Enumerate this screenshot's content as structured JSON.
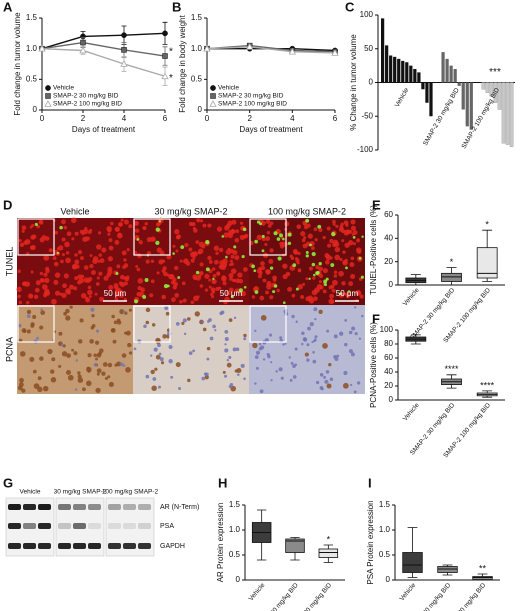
{
  "chart_data": [
    {
      "type": "line",
      "panel": "A",
      "x": [
        0,
        2,
        4,
        6
      ],
      "xlim": [
        0,
        6
      ],
      "xticks": [
        0,
        2,
        4,
        6
      ],
      "ylim": [
        0,
        1.5
      ],
      "yticks": [
        0,
        0.5,
        {
          "value": 1,
          "label": "1.0"
        },
        {
          "value": 1.5,
          "label": "1.5"
        }
      ],
      "xlabel": "Days of treatment",
      "ylabel": "Fold change in tumor volume",
      "legend": "lower left",
      "series": [
        {
          "name": "Vehicle",
          "color": "#111111",
          "marker": "circle",
          "values": [
            1,
            1.2,
            1.22,
            1.25
          ],
          "errors": [
            0,
            0.08,
            0.15,
            0.18
          ]
        },
        {
          "name": "SMAP-2 30 mg/kg BID",
          "color": "#666666",
          "marker": "square",
          "values": [
            1,
            1.1,
            0.98,
            0.88
          ],
          "errors": [
            0,
            0.08,
            0.12,
            0.15
          ]
        },
        {
          "name": "SMAP-2 100 mg/kg BID",
          "color": "#aaaaaa",
          "marker": "triangle",
          "values": [
            1,
            0.97,
            0.75,
            0.55
          ],
          "errors": [
            0,
            0.06,
            0.12,
            0.15
          ]
        }
      ],
      "annotations": [
        "*",
        "*"
      ]
    },
    {
      "type": "line",
      "panel": "B",
      "x": [
        0,
        2,
        4,
        6
      ],
      "xlim": [
        0,
        6
      ],
      "xticks": [
        0,
        2,
        4,
        6
      ],
      "ylim": [
        0,
        1.5
      ],
      "yticks": [
        0,
        0.5,
        {
          "value": 1,
          "label": "1.0"
        },
        {
          "value": 1.5,
          "label": "1.5"
        }
      ],
      "xlabel": "Days of treatment",
      "ylabel": "Fold change in body weight",
      "legend": "lower left",
      "series": [
        {
          "name": "Vehicle",
          "color": "#111111",
          "marker": "circle",
          "values": [
            1,
            1,
            1,
            0.97
          ]
        },
        {
          "name": "SMAP-2 30 mg/kg BID",
          "color": "#666666",
          "marker": "square",
          "values": [
            1,
            1.05,
            0.97,
            0.95
          ]
        },
        {
          "name": "SMAP-2 100 mg/kg BID",
          "color": "#aaaaaa",
          "marker": "triangle",
          "values": [
            1,
            1.03,
            0.95,
            0.93
          ]
        }
      ]
    },
    {
      "type": "bar",
      "panel": "C",
      "ylim": [
        -100,
        100
      ],
      "yticks": [
        -100,
        -50,
        0,
        50,
        100
      ],
      "ylabel": "% Change in tumor volume",
      "series": [
        {
          "name": "Vehicle",
          "color": "#111111",
          "values": [
            95,
            55,
            40,
            38,
            35,
            32,
            30,
            25,
            20,
            15,
            -10,
            -30,
            -50
          ]
        },
        {
          "name": "SMAP-2 30 mg/kg BID",
          "color": "#666666",
          "values": [
            45,
            35,
            25,
            20,
            -5,
            -40,
            -65,
            -70
          ]
        },
        {
          "name": "SMAP-2 100 mg/kg BID",
          "color": "#c8c8c8",
          "values": [
            -10,
            -15,
            -20,
            -30,
            -40,
            -90,
            -92,
            -95
          ]
        }
      ],
      "annotations": [
        "***"
      ]
    },
    {
      "type": "box",
      "panel": "E",
      "ylim": [
        0,
        60
      ],
      "yticks": [
        0,
        20,
        40,
        60
      ],
      "ylabel": "TUNEL-Positive cells (%)",
      "categories": [
        "Vehicle",
        "SMAP-2 30 mg/kg BID",
        "SMAP-2 100 mg/kg BID"
      ],
      "boxes": [
        {
          "color": "#3c3c3c",
          "min": 0,
          "q1": 2,
          "median": 4,
          "q3": 6,
          "max": 9
        },
        {
          "color": "#8a8a8a",
          "min": 0,
          "q1": 3,
          "median": 7,
          "q3": 10,
          "max": 15,
          "mark": "*"
        },
        {
          "color": "#e8e8e8",
          "min": 3,
          "q1": 6,
          "median": 10,
          "q3": 32,
          "max": 47,
          "mark": "*"
        }
      ]
    },
    {
      "type": "box",
      "panel": "F",
      "ylim": [
        0,
        100
      ],
      "yticks": [
        0,
        20,
        40,
        60,
        80,
        100
      ],
      "ylabel": "PCNA-Positive cells (%)",
      "categories": [
        "Vehicle",
        "SMAP-2 30 mg/kg BID",
        "SMAP-2 100 mg/kg BID"
      ],
      "boxes": [
        {
          "color": "#3c3c3c",
          "min": 80,
          "q1": 84,
          "median": 87,
          "q3": 90,
          "max": 93
        },
        {
          "color": "#8a8a8a",
          "min": 17,
          "q1": 22,
          "median": 26,
          "q3": 30,
          "max": 36,
          "mark": "****"
        },
        {
          "color": "#e8e8e8",
          "min": 4,
          "q1": 6,
          "median": 8,
          "q3": 10,
          "max": 13,
          "mark": "****"
        }
      ]
    },
    {
      "type": "box",
      "panel": "H",
      "ylim": [
        0,
        1.5
      ],
      "yticks": [
        0,
        0.5,
        {
          "value": 1,
          "label": "1.0"
        },
        {
          "value": 1.5,
          "label": "1.5"
        }
      ],
      "ylabel": "AR Protein expression",
      "categories": [
        "Vehicle",
        "SMAP-2 30 mg/kg BID",
        "SMAP-2 100 mg/kg BID"
      ],
      "boxes": [
        {
          "color": "#3c3c3c",
          "min": 0.4,
          "q1": 0.75,
          "median": 0.95,
          "q3": 1.15,
          "max": 1.4
        },
        {
          "color": "#8a8a8a",
          "min": 0.4,
          "q1": 0.55,
          "median": 0.78,
          "q3": 0.82,
          "max": 0.85
        },
        {
          "color": "#e8e8e8",
          "min": 0.35,
          "q1": 0.45,
          "median": 0.55,
          "q3": 0.62,
          "max": 0.7,
          "mark": "*"
        }
      ]
    },
    {
      "type": "box",
      "panel": "I",
      "ylim": [
        0,
        1.5
      ],
      "yticks": [
        0,
        0.5,
        {
          "value": 1,
          "label": "1.0"
        },
        {
          "value": 1.5,
          "label": "1.5"
        }
      ],
      "ylabel": "PSA Protein expression",
      "categories": [
        "Vehicle",
        "SMAP-2 30 mg/kg BID",
        "SMAP-2 100 mg/kg BID"
      ],
      "boxes": [
        {
          "color": "#3c3c3c",
          "min": 0.05,
          "q1": 0.15,
          "median": 0.3,
          "q3": 0.55,
          "max": 1.05
        },
        {
          "color": "#8a8a8a",
          "min": 0.1,
          "q1": 0.15,
          "median": 0.22,
          "q3": 0.27,
          "max": 0.3
        },
        {
          "color": "#e8e8e8",
          "min": 0,
          "q1": 0.02,
          "median": 0.05,
          "q3": 0.07,
          "max": 0.12,
          "mark": "**"
        }
      ]
    }
  ],
  "micrographs": {
    "panel": "D",
    "columns": [
      "Vehicle",
      "30 mg/kg SMAP-2",
      "100 mg/kg SMAP-2"
    ],
    "rows": [
      "TUNEL",
      "PCNA"
    ],
    "scale_bars": [
      "50 μm",
      "50 μm",
      "50 μm"
    ]
  },
  "blot": {
    "panel": "G",
    "groups": [
      "Vehicle",
      "30 mg/kg SMAP-2",
      "100 mg/kg SMAP-2"
    ],
    "bands": [
      "AR (N-Term)",
      "PSA",
      "GAPDH"
    ]
  }
}
